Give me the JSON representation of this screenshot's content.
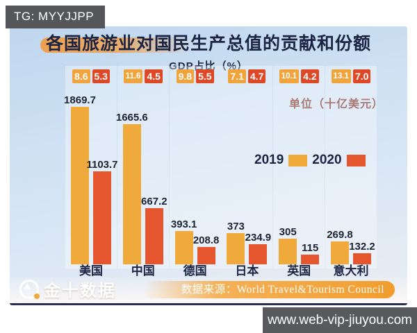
{
  "overlay": {
    "tg_badge": "TG: MYYJJPP",
    "url_badge": "www.web-vip-jiuyou.com"
  },
  "header": {
    "title": "各国旅游业对国民生产总值的贡献和份额",
    "subtitle": "GDP占比（%）",
    "unit_label": "单位（十亿美元）"
  },
  "legend": [
    {
      "label": "2019",
      "color": "#F0A93B"
    },
    {
      "label": "2020",
      "color": "#E4562E"
    }
  ],
  "footer": {
    "brand": "金十数据",
    "source_label": "数据来源：World Travel&Tourism Council"
  },
  "colors": {
    "bar_2019": "#F0A93B",
    "bar_2020": "#E5562F",
    "badge_2019": "#F1A33C",
    "badge_2020": "#DF4827",
    "title_text": "#1C2444",
    "unit_text": "#7A332B",
    "card_bg_top": "#BED6EE",
    "card_bg_bottom": "#E9EDF2"
  },
  "chart_data": {
    "type": "bar",
    "title": "各国旅游业对国民生产总值的贡献和份额",
    "unit": "十亿美元",
    "categories": [
      "美国",
      "中国",
      "德国",
      "日本",
      "英国",
      "意大利"
    ],
    "series": [
      {
        "name": "2019",
        "color": "#F0A93B",
        "values": [
          1869.7,
          1665.6,
          393.1,
          373,
          305,
          269.8
        ],
        "labels": [
          "1869.7",
          "1665.6",
          "393.1",
          "373",
          "305",
          "269.8"
        ]
      },
      {
        "name": "2020",
        "color": "#E5562F",
        "values": [
          1103.7,
          667.2,
          208.8,
          234.9,
          115,
          132.2
        ],
        "labels": [
          "1103.7",
          "667.2",
          "208.8",
          "234.9",
          "115",
          "132.2"
        ]
      }
    ],
    "gdp_share_pct": {
      "label": "GDP占比（%）",
      "series": [
        {
          "name": "2019",
          "color": "#F1A33C",
          "values": [
            "8.6",
            "11.6",
            "9.8",
            "7.1",
            "10.1",
            "13.1"
          ]
        },
        {
          "name": "2020",
          "color": "#DF4827",
          "values": [
            "5.3",
            "4.5",
            "5.5",
            "4.7",
            "4.2",
            "7.0"
          ]
        }
      ]
    },
    "ylim": [
      0,
      1900
    ],
    "grid": false,
    "legend_position": "middle-right",
    "source": "World Travel&Tourism Council"
  }
}
